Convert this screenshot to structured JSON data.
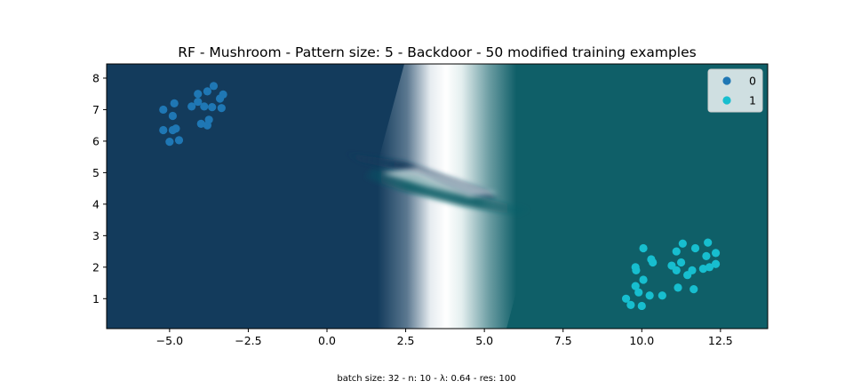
{
  "chart_data": {
    "type": "scatter",
    "title": "RF - Mushroom - Pattern size: 5 - Backdoor - 50 modified training examples",
    "footnote": "batch size: 32 - n: 10 - λ: 0.64 - res: 100",
    "xlabel": "",
    "ylabel": "",
    "xlim": [
      -7.0,
      14.0
    ],
    "ylim": [
      0.05,
      8.45
    ],
    "x_ticks": [
      -5.0,
      -2.5,
      0.0,
      2.5,
      5.0,
      7.5,
      10.0,
      12.5
    ],
    "x_tick_labels": [
      "−5.0",
      "−2.5",
      "0.0",
      "2.5",
      "5.0",
      "7.5",
      "10.0",
      "12.5"
    ],
    "y_ticks": [
      1,
      2,
      3,
      4,
      5,
      6,
      7,
      8
    ],
    "y_tick_labels": [
      "1",
      "2",
      "3",
      "4",
      "5",
      "6",
      "7",
      "8"
    ],
    "grid": false,
    "legend_position": "top-right",
    "background": {
      "type": "decision-surface",
      "class0_color": "#133b5c",
      "class1_color": "#0f5f68",
      "boundary_color": "#ffffff"
    },
    "series": [
      {
        "name": "0",
        "color": "#1f77b4",
        "points": [
          [
            -5.2,
            7.0
          ],
          [
            -4.85,
            7.2
          ],
          [
            -4.9,
            6.8
          ],
          [
            -5.2,
            6.35
          ],
          [
            -4.9,
            6.35
          ],
          [
            -4.8,
            6.4
          ],
          [
            -5.0,
            5.98
          ],
          [
            -4.7,
            6.03
          ],
          [
            -4.3,
            7.1
          ],
          [
            -4.1,
            7.5
          ],
          [
            -4.1,
            7.25
          ],
          [
            -3.9,
            7.1
          ],
          [
            -3.8,
            7.58
          ],
          [
            -3.6,
            7.75
          ],
          [
            -3.65,
            7.08
          ],
          [
            -3.35,
            7.05
          ],
          [
            -3.3,
            7.48
          ],
          [
            -3.4,
            7.35
          ],
          [
            -4.0,
            6.55
          ],
          [
            -3.8,
            6.5
          ],
          [
            -3.75,
            6.68
          ]
        ]
      },
      {
        "name": "1",
        "color": "#17becf",
        "points": [
          [
            9.5,
            1.0
          ],
          [
            9.65,
            0.8
          ],
          [
            9.8,
            1.4
          ],
          [
            9.8,
            2.0
          ],
          [
            9.82,
            1.9
          ],
          [
            9.9,
            1.2
          ],
          [
            10.0,
            0.77
          ],
          [
            10.05,
            2.6
          ],
          [
            10.05,
            1.6
          ],
          [
            10.25,
            1.1
          ],
          [
            10.3,
            2.25
          ],
          [
            10.35,
            2.15
          ],
          [
            10.65,
            1.1
          ],
          [
            10.95,
            2.05
          ],
          [
            11.1,
            2.5
          ],
          [
            11.15,
            1.35
          ],
          [
            11.1,
            1.9
          ],
          [
            11.25,
            2.15
          ],
          [
            11.3,
            2.75
          ],
          [
            11.45,
            1.75
          ],
          [
            11.6,
            1.9
          ],
          [
            11.65,
            1.3
          ],
          [
            11.7,
            2.6
          ],
          [
            11.95,
            1.95
          ],
          [
            12.05,
            2.35
          ],
          [
            12.1,
            2.78
          ],
          [
            12.15,
            2.0
          ],
          [
            12.35,
            2.1
          ],
          [
            12.35,
            2.45
          ]
        ]
      }
    ]
  }
}
